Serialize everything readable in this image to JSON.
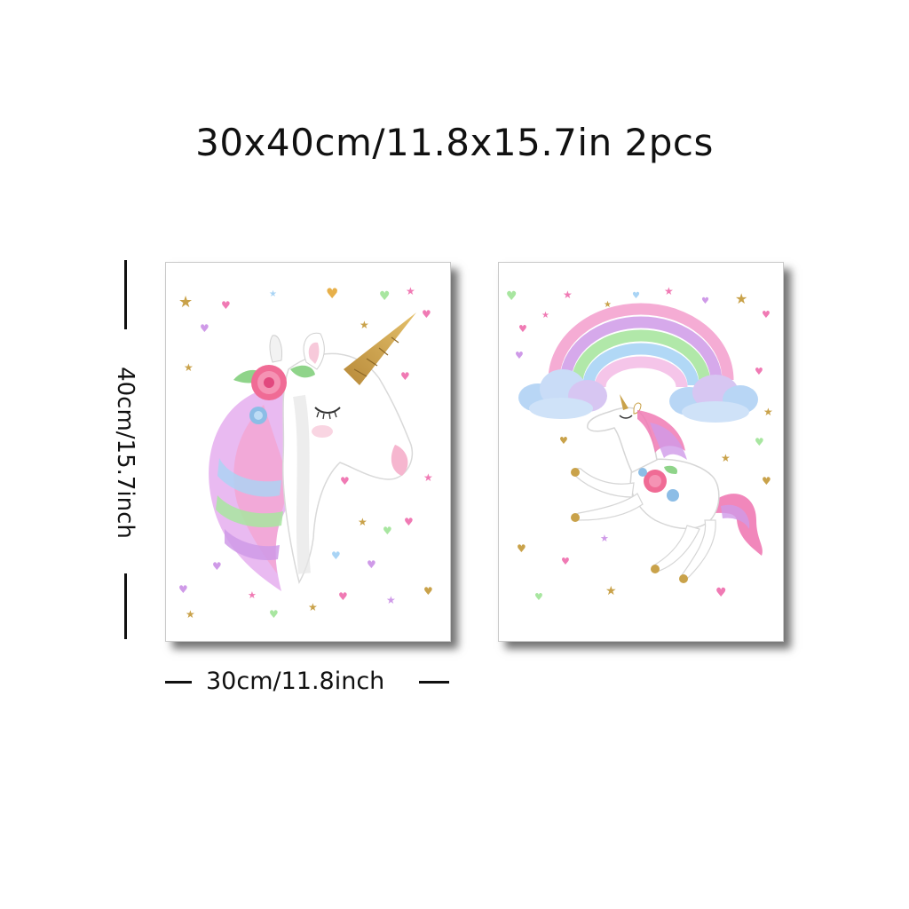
{
  "title": "30x40cm/11.8x15.7in 2pcs",
  "dimensions": {
    "height_label": "40cm/15.7inch",
    "width_label": "30cm/11.8inch"
  },
  "posters": [
    {
      "subject": "unicorn-head-with-rose"
    },
    {
      "subject": "leaping-unicorn-under-rainbow"
    }
  ],
  "colors": {
    "gold": "#c9a24a",
    "pink": "#f07ab4",
    "lilac": "#cf9ae8",
    "mint": "#a8e6a0",
    "sky": "#a9d4f5",
    "text": "#111111"
  }
}
